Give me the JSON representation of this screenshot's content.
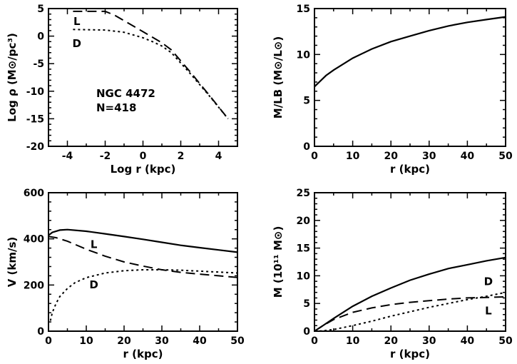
{
  "chart_data": [
    {
      "id": "density",
      "type": "line",
      "xlabel": "Log r (kpc)",
      "ylabel": "Log ρ (M⊙/pc³)",
      "xlim": [
        -5,
        5
      ],
      "ylim": [
        -20,
        5
      ],
      "xticks": [
        -4,
        -2,
        0,
        2,
        4
      ],
      "yticks": [
        5,
        0,
        -5,
        -10,
        -15,
        -20
      ],
      "annotation": [
        "NGC 4472",
        "N=418"
      ],
      "series": [
        {
          "name": "L",
          "style": "dashed",
          "x": [
            -3.7,
            -2.0,
            -1.5,
            0.0,
            1.0,
            1.5,
            2.5,
            3.5,
            4.5
          ],
          "y": [
            4.5,
            4.5,
            3.8,
            0.8,
            -1.2,
            -2.5,
            -6.5,
            -10.7,
            -15.0
          ]
        },
        {
          "name": "D",
          "style": "dotted",
          "x": [
            -3.7,
            -2.0,
            -1.0,
            0.0,
            0.5,
            1.0,
            1.5,
            2.5,
            3.5,
            4.5
          ],
          "y": [
            1.2,
            1.1,
            0.7,
            -0.3,
            -1.0,
            -1.8,
            -3.0,
            -6.8,
            -10.8,
            -15.0
          ]
        }
      ],
      "labels": [
        {
          "text": "L",
          "x": -3.5,
          "y": 2.0
        },
        {
          "text": "D",
          "x": -3.5,
          "y": -2.0
        }
      ]
    },
    {
      "id": "mass-to-light",
      "type": "line",
      "xlabel": "r (kpc)",
      "ylabel": "M/LB (M⊙/L⊙)",
      "xlim": [
        0,
        50
      ],
      "ylim": [
        0,
        15
      ],
      "xticks": [
        0,
        10,
        20,
        30,
        40,
        50
      ],
      "yticks": [
        0,
        5,
        10,
        15
      ],
      "series": [
        {
          "name": "",
          "style": "solid",
          "x": [
            0,
            1,
            3,
            5,
            10,
            15,
            20,
            25,
            30,
            35,
            40,
            45,
            50
          ],
          "y": [
            6.5,
            6.9,
            7.7,
            8.3,
            9.6,
            10.6,
            11.4,
            12.0,
            12.6,
            13.1,
            13.5,
            13.8,
            14.1
          ]
        }
      ]
    },
    {
      "id": "velocity",
      "type": "line",
      "xlabel": "r (kpc)",
      "ylabel": "V (km/s)",
      "xlim": [
        0,
        50
      ],
      "ylim": [
        0,
        600
      ],
      "xticks": [
        0,
        10,
        20,
        30,
        40,
        50
      ],
      "yticks": [
        0,
        200,
        400,
        600
      ],
      "series": [
        {
          "name": "",
          "style": "solid",
          "x": [
            0,
            1,
            3,
            5,
            10,
            15,
            20,
            25,
            30,
            35,
            40,
            45,
            50
          ],
          "y": [
            415,
            428,
            438,
            440,
            433,
            422,
            410,
            398,
            385,
            372,
            362,
            352,
            342
          ]
        },
        {
          "name": "L",
          "style": "dashed",
          "x": [
            0,
            2,
            5,
            10,
            15,
            20,
            25,
            30,
            35,
            40,
            45,
            50
          ],
          "y": [
            410,
            405,
            390,
            355,
            325,
            300,
            282,
            266,
            255,
            247,
            240,
            233
          ]
        },
        {
          "name": "D",
          "style": "dotted",
          "x": [
            0.5,
            1,
            2,
            3,
            5,
            7,
            10,
            15,
            20,
            25,
            30,
            35,
            40,
            45,
            50
          ],
          "y": [
            45,
            80,
            120,
            150,
            185,
            210,
            232,
            252,
            262,
            266,
            266,
            264,
            260,
            256,
            252
          ]
        }
      ],
      "labels": [
        {
          "text": "L",
          "x": 12,
          "y": 360
        },
        {
          "text": "D",
          "x": 12,
          "y": 185
        }
      ]
    },
    {
      "id": "mass",
      "type": "line",
      "xlabel": "r (kpc)",
      "ylabel": "M (10¹¹ M⊙)",
      "xlim": [
        0,
        50
      ],
      "ylim": [
        0,
        25
      ],
      "xticks": [
        0,
        10,
        20,
        30,
        40,
        50
      ],
      "yticks": [
        0,
        5,
        10,
        15,
        20,
        25
      ],
      "series": [
        {
          "name": "",
          "style": "solid",
          "x": [
            0,
            2,
            5,
            10,
            15,
            20,
            25,
            30,
            35,
            40,
            45,
            50
          ],
          "y": [
            0,
            0.9,
            2.3,
            4.5,
            6.3,
            7.8,
            9.2,
            10.3,
            11.3,
            12.0,
            12.7,
            13.3
          ]
        },
        {
          "name": "L",
          "style": "dashed",
          "x": [
            0,
            2,
            5,
            10,
            15,
            20,
            25,
            30,
            35,
            40,
            45,
            50
          ],
          "y": [
            0,
            0.9,
            2.1,
            3.4,
            4.2,
            4.8,
            5.2,
            5.5,
            5.8,
            6.0,
            6.1,
            6.2
          ]
        },
        {
          "name": "D",
          "style": "dotted",
          "x": [
            0,
            2,
            5,
            10,
            15,
            20,
            25,
            30,
            35,
            40,
            45,
            50
          ],
          "y": [
            0,
            0.05,
            0.3,
            1.0,
            1.8,
            2.7,
            3.5,
            4.3,
            5.0,
            5.7,
            6.3,
            7.0
          ]
        }
      ],
      "labels": [
        {
          "text": "D",
          "x": 45.5,
          "y": 8.3
        },
        {
          "text": "L",
          "x": 45.5,
          "y": 3.0
        }
      ]
    }
  ]
}
